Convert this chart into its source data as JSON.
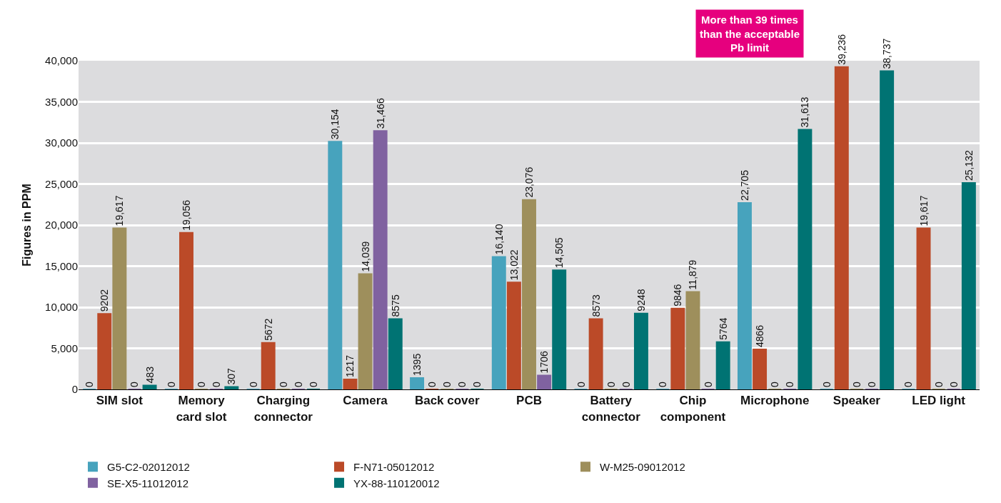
{
  "chart_data": {
    "type": "bar",
    "ylabel": "Figures in PPM",
    "categories": [
      "SIM slot",
      "Memory card slot",
      "Charging connector",
      "Camera",
      "Back cover",
      "PCB",
      "Battery connector",
      "Chip component",
      "Microphone",
      "Speaker",
      "LED light"
    ],
    "series": [
      {
        "name": "G5-C2-02012012",
        "color": "#47a3bd",
        "values": [
          0,
          0,
          0,
          30154,
          1395,
          16140,
          0,
          0,
          22705,
          0,
          0
        ],
        "value_labels": [
          "0",
          "0",
          "0",
          "30,154",
          "1395",
          "16,140",
          "0",
          "0",
          "22,705",
          "0",
          "0"
        ]
      },
      {
        "name": "F-N71-05012012",
        "color": "#bb4a28",
        "values": [
          9202,
          19056,
          5672,
          1217,
          0,
          13022,
          8573,
          9846,
          4866,
          39236,
          19617
        ],
        "value_labels": [
          "9202",
          "19,056",
          "5672",
          "1217",
          "0",
          "13,022",
          "8573",
          "9846",
          "4866",
          "39,236",
          "19,617"
        ]
      },
      {
        "name": "W-M25-09012012",
        "color": "#9e8f5c",
        "values": [
          19617,
          0,
          0,
          14039,
          0,
          23076,
          0,
          11879,
          0,
          0,
          0
        ],
        "value_labels": [
          "19,617",
          "0",
          "0",
          "14,039",
          "0",
          "23,076",
          "0",
          "11,879",
          "0",
          "0",
          "0"
        ]
      },
      {
        "name": "SE-X5-11012012",
        "color": "#8062a0",
        "values": [
          0,
          0,
          0,
          31466,
          0,
          1706,
          0,
          0,
          0,
          0,
          0
        ],
        "value_labels": [
          "0",
          "0",
          "0",
          "31,466",
          "0",
          "1706",
          "0",
          "0",
          "0",
          "0",
          "0"
        ]
      },
      {
        "name": "YX-88-110120012",
        "color": "#007373",
        "values": [
          483,
          307,
          0,
          8575,
          0,
          14505,
          9248,
          5764,
          31613,
          38737,
          25132
        ],
        "value_labels": [
          "483",
          "307",
          "0",
          "8575",
          "0",
          "14,505",
          "9248",
          "5764",
          "31,613",
          "38,737",
          "25,132"
        ]
      }
    ],
    "ylim": [
      0,
      40000
    ],
    "yticks": [
      {
        "value": 0,
        "label": "0"
      },
      {
        "value": 5000,
        "label": "5,000"
      },
      {
        "value": 10000,
        "label": "10,000"
      },
      {
        "value": 15000,
        "label": "15,000"
      },
      {
        "value": 20000,
        "label": "20,000"
      },
      {
        "value": 25000,
        "label": "25,000"
      },
      {
        "value": 30000,
        "label": "30,000"
      },
      {
        "value": 35000,
        "label": "35,000"
      },
      {
        "value": 40000,
        "label": "40,000"
      }
    ],
    "grid": "y",
    "legend": "bottom",
    "annotations": [
      "More than 39 times\nthan the acceptable\nPb limit"
    ]
  }
}
